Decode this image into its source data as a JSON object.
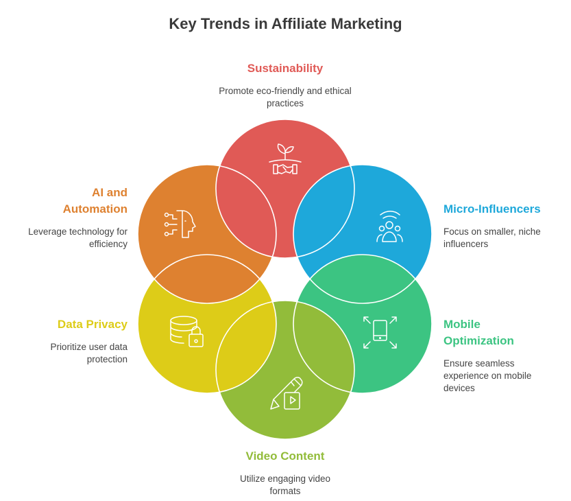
{
  "title": "Key Trends in Affiliate Marketing",
  "trends": {
    "sustainability": {
      "label": "Sustainability",
      "desc": "Promote eco-friendly and ethical practices",
      "color": "#E05A56",
      "icon": "plant-handshake-icon"
    },
    "micro": {
      "label": "Micro-Influencers",
      "desc": "Focus on smaller, niche influencers",
      "color": "#1EA8DA",
      "icon": "people-broadcast-icon"
    },
    "mobile": {
      "label": "Mobile Optimization",
      "desc": "Ensure seamless experience on mobile devices",
      "color": "#3CC482",
      "icon": "mobile-expand-icon"
    },
    "video": {
      "label": "Video Content",
      "desc": "Utilize engaging video formats",
      "color": "#92BC3A",
      "icon": "pencil-video-icon"
    },
    "privacy": {
      "label": "Data Privacy",
      "desc": "Prioritize user data protection",
      "color": "#DDCC18",
      "icon": "database-lock-icon"
    },
    "ai": {
      "label": "AI and Automation",
      "desc": "Leverage technology for efficiency",
      "color": "#DE8130",
      "icon": "ai-head-icon"
    }
  }
}
